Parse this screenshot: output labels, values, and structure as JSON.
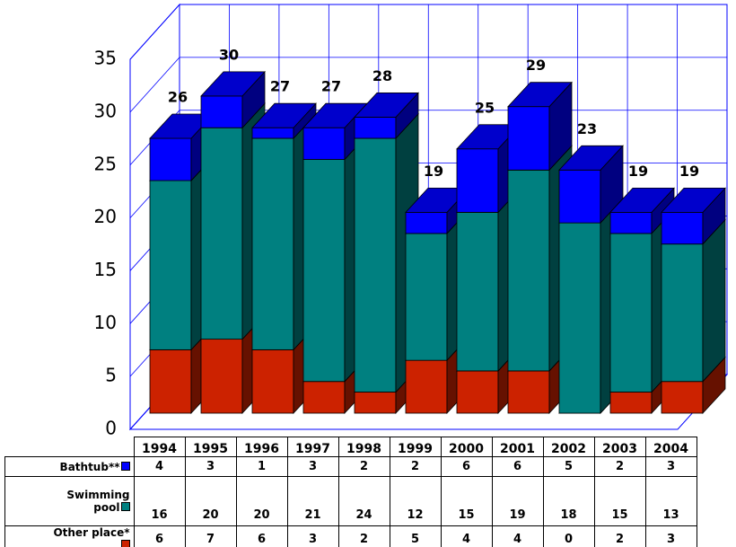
{
  "chart_data": {
    "type": "stacked-bar-3d",
    "categories": [
      "1994",
      "1995",
      "1996",
      "1997",
      "1998",
      "1999",
      "2000",
      "2001",
      "2002",
      "2003",
      "2004"
    ],
    "series": [
      {
        "name": "Other place*",
        "color": "#cc2200",
        "values": [
          6,
          7,
          6,
          3,
          2,
          5,
          4,
          4,
          0,
          2,
          3
        ]
      },
      {
        "name": "Swimming pool",
        "color": "#008080",
        "values": [
          16,
          20,
          20,
          21,
          24,
          12,
          15,
          19,
          18,
          15,
          13
        ]
      },
      {
        "name": "Bathtub**",
        "color": "#0000ff",
        "values": [
          4,
          3,
          1,
          3,
          2,
          2,
          6,
          6,
          5,
          2,
          3
        ]
      }
    ],
    "totals": [
      26,
      30,
      27,
      27,
      28,
      19,
      25,
      29,
      23,
      19,
      19
    ],
    "ylim": [
      0,
      35
    ],
    "yticks": [
      0,
      5,
      10,
      15,
      20,
      25,
      30,
      35
    ],
    "grid": true
  }
}
